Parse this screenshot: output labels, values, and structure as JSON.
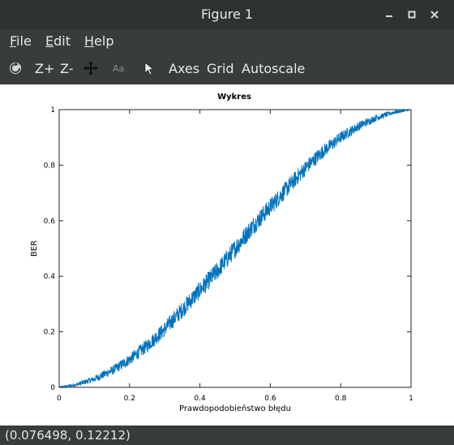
{
  "window": {
    "title": "Figure 1"
  },
  "menu": {
    "items": [
      {
        "underline": "F",
        "rest": "ile"
      },
      {
        "underline": "E",
        "rest": "dit"
      },
      {
        "underline": "H",
        "rest": "elp"
      }
    ]
  },
  "toolbar": {
    "zoom_in": "Z+",
    "zoom_out": "Z-",
    "text_icon_label": "Aa",
    "axes": "Axes",
    "grid": "Grid",
    "autoscale": "Autoscale"
  },
  "status": {
    "coordinates": "(0.076498, 0.12212)"
  },
  "colors": {
    "line": "#0072bd"
  },
  "chart_data": {
    "type": "line",
    "title": "Wykres",
    "xlabel": "Prawdopodobieństwo błędu",
    "ylabel": "BER",
    "xlim": [
      0,
      1
    ],
    "ylim": [
      0,
      1
    ],
    "xticks": [
      "0",
      "0.2",
      "0.4",
      "0.6",
      "0.8",
      "1"
    ],
    "yticks": [
      "0",
      "0.2",
      "0.4",
      "0.6",
      "0.8",
      "1"
    ],
    "grid": false,
    "series": [
      {
        "x": [
          0,
          0.05,
          0.1,
          0.15,
          0.2,
          0.25,
          0.3,
          0.35,
          0.4,
          0.45,
          0.5,
          0.55,
          0.6,
          0.65,
          0.7,
          0.75,
          0.8,
          0.85,
          0.9,
          0.95,
          1
        ],
        "y": [
          0,
          0.01,
          0.03,
          0.06,
          0.1,
          0.15,
          0.21,
          0.28,
          0.35,
          0.42,
          0.5,
          0.58,
          0.65,
          0.72,
          0.79,
          0.85,
          0.9,
          0.94,
          0.97,
          0.99,
          1
        ],
        "noise": 0.02
      }
    ]
  }
}
